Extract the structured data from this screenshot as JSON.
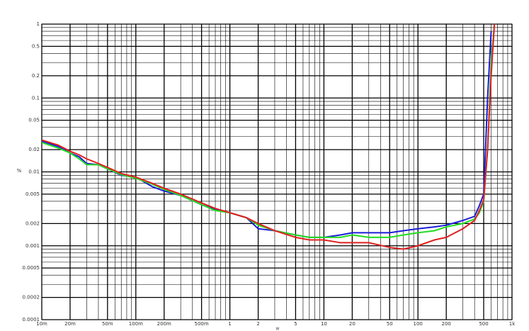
{
  "chart_data": {
    "type": "line",
    "y_label": "%",
    "x_label": "W",
    "log_x": true,
    "log_y": true,
    "grid": true,
    "xlim": [
      0.01,
      1000
    ],
    "ylim": [
      0.0001,
      1
    ],
    "xticks": [
      {
        "value": 0.01,
        "label": "10m"
      },
      {
        "value": 0.02,
        "label": "20m"
      },
      {
        "value": 0.05,
        "label": "50m"
      },
      {
        "value": 0.1,
        "label": "100m"
      },
      {
        "value": 0.2,
        "label": "200m"
      },
      {
        "value": 0.5,
        "label": "500m"
      },
      1,
      2,
      5,
      10,
      20,
      50,
      100,
      200,
      500,
      {
        "value": 1000,
        "label": "1k"
      }
    ],
    "yticks": [
      0.0001,
      0.0002,
      0.0005,
      0.001,
      0.002,
      0.005,
      0.01,
      0.02,
      0.05,
      0.1,
      0.2,
      0.5,
      1
    ],
    "xminor": [
      0.03,
      0.04,
      0.06,
      0.07,
      0.08,
      0.09,
      0.3,
      0.4,
      0.6,
      0.7,
      0.8,
      0.9,
      3,
      4,
      6,
      7,
      8,
      9,
      30,
      40,
      60,
      70,
      80,
      90,
      300,
      400,
      600,
      700,
      800,
      900
    ],
    "yminor": [
      0.0003,
      0.0004,
      0.0006,
      0.0007,
      0.0008,
      0.0009,
      0.003,
      0.004,
      0.006,
      0.007,
      0.008,
      0.009,
      0.03,
      0.04,
      0.06,
      0.07,
      0.08,
      0.09,
      0.3,
      0.4,
      0.6,
      0.7,
      0.8,
      0.9
    ],
    "x": [
      0.01,
      0.015,
      0.02,
      0.025,
      0.03,
      0.04,
      0.05,
      0.07,
      0.1,
      0.15,
      0.2,
      0.3,
      0.5,
      0.7,
      1,
      1.5,
      2,
      3,
      5,
      7,
      10,
      15,
      20,
      30,
      50,
      70,
      100,
      150,
      200,
      300,
      400,
      450,
      500,
      550,
      600,
      650
    ],
    "series": [
      {
        "color": "#1c1cd8",
        "values": [
          0.026,
          0.022,
          0.018,
          0.016,
          0.013,
          0.0125,
          0.011,
          0.009,
          0.0085,
          0.0063,
          0.0055,
          0.0048,
          0.0036,
          0.0031,
          0.0028,
          0.0024,
          0.0017,
          0.0016,
          0.0014,
          0.0013,
          0.0013,
          0.0014,
          0.0015,
          0.0015,
          0.0015,
          0.0016,
          0.0017,
          0.0018,
          0.0019,
          0.0022,
          0.0025,
          0.0035,
          0.005,
          0.1,
          0.8,
          null
        ]
      },
      {
        "color": "#22dd22",
        "values": [
          0.025,
          0.021,
          0.018,
          0.015,
          0.0125,
          0.0125,
          0.011,
          0.0092,
          0.0082,
          0.0068,
          0.0058,
          0.0048,
          0.0036,
          0.003,
          0.0028,
          0.0024,
          0.0019,
          0.0016,
          0.0014,
          0.0013,
          0.0013,
          0.0013,
          0.0014,
          0.0013,
          0.0013,
          0.0014,
          0.0015,
          0.0016,
          0.0018,
          0.002,
          0.0023,
          0.0028,
          0.004,
          0.02,
          0.3,
          1
        ]
      },
      {
        "color": "#e02020",
        "values": [
          0.027,
          0.023,
          0.019,
          0.017,
          0.015,
          0.013,
          0.0115,
          0.0095,
          0.0085,
          0.007,
          0.006,
          0.005,
          0.0038,
          0.0032,
          0.0028,
          0.0024,
          0.002,
          0.0016,
          0.0013,
          0.0012,
          0.0012,
          0.0011,
          0.0011,
          0.0011,
          0.00095,
          0.0009,
          0.001,
          0.0012,
          0.0013,
          0.0017,
          0.0022,
          0.003,
          0.0042,
          0.02,
          0.2,
          1
        ]
      }
    ]
  }
}
